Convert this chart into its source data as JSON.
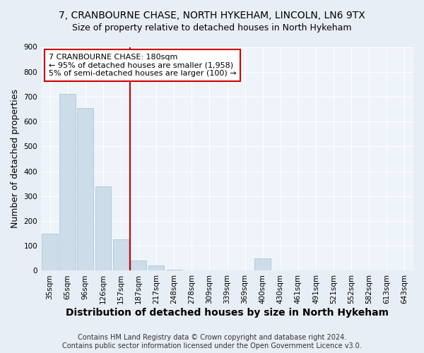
{
  "title_line1": "7, CRANBOURNE CHASE, NORTH HYKEHAM, LINCOLN, LN6 9TX",
  "title_line2": "Size of property relative to detached houses in North Hykeham",
  "xlabel": "Distribution of detached houses by size in North Hykeham",
  "ylabel": "Number of detached properties",
  "footer": "Contains HM Land Registry data © Crown copyright and database right 2024.\nContains public sector information licensed under the Open Government Licence v3.0.",
  "categories": [
    "35sqm",
    "65sqm",
    "96sqm",
    "126sqm",
    "157sqm",
    "187sqm",
    "217sqm",
    "248sqm",
    "278sqm",
    "309sqm",
    "339sqm",
    "369sqm",
    "400sqm",
    "430sqm",
    "461sqm",
    "491sqm",
    "521sqm",
    "552sqm",
    "582sqm",
    "613sqm",
    "643sqm"
  ],
  "values": [
    150,
    710,
    655,
    340,
    127,
    40,
    20,
    5,
    0,
    0,
    0,
    0,
    50,
    0,
    0,
    0,
    0,
    0,
    0,
    0,
    0
  ],
  "bar_color": "#ccdce8",
  "bar_edge_color": "#a8c0d4",
  "vline_color": "#cc0000",
  "annotation_text": "7 CRANBOURNE CHASE: 180sqm\n← 95% of detached houses are smaller (1,958)\n5% of semi-detached houses are larger (100) →",
  "annotation_box_color": "#ffffff",
  "annotation_box_edge": "#cc0000",
  "ylim": [
    0,
    900
  ],
  "yticks": [
    0,
    100,
    200,
    300,
    400,
    500,
    600,
    700,
    800,
    900
  ],
  "bg_color": "#e8eef5",
  "plot_bg_color": "#eef4fa",
  "title_fontsize": 10,
  "subtitle_fontsize": 9,
  "axis_label_fontsize": 9,
  "tick_fontsize": 7.5,
  "footer_fontsize": 7,
  "annotation_fontsize": 8
}
